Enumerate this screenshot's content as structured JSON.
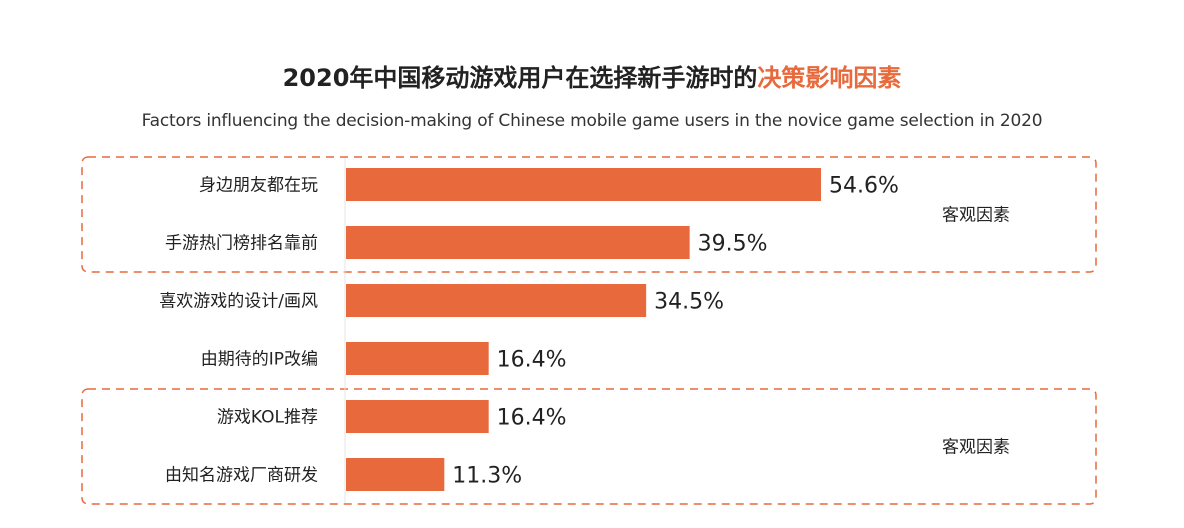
{
  "header": {
    "title_main": "2020年中国移动游戏用户在选择新手游时的",
    "title_accent": "决策影响因素",
    "subtitle": "Factors influencing the decision-making of Chinese mobile game users in the novice game selection in 2020"
  },
  "colors": {
    "bar": "#e8693b",
    "accent": "#e8693b",
    "dash_border": "#e8693b"
  },
  "chart_data": {
    "type": "bar",
    "orientation": "horizontal",
    "categories": [
      "身边朋友都在玩",
      "手游热门榜排名靠前",
      "喜欢游戏的设计/画风",
      "由期待的IP改编",
      "游戏KOL推荐",
      "由知名游戏厂商研发"
    ],
    "values": [
      54.6,
      39.5,
      34.5,
      16.4,
      16.4,
      11.3
    ],
    "value_labels": [
      "54.6%",
      "39.5%",
      "34.5%",
      "16.4%",
      "16.4%",
      "11.3%"
    ],
    "unit": "%",
    "xlim": [
      0,
      100
    ],
    "grid": false,
    "groups": [
      {
        "label": "客观因素",
        "categories": [
          "身边朋友都在玩",
          "手游热门榜排名靠前"
        ]
      },
      {
        "label": "客观因素",
        "categories": [
          "游戏KOL推荐",
          "由知名游戏厂商研发"
        ]
      }
    ]
  }
}
